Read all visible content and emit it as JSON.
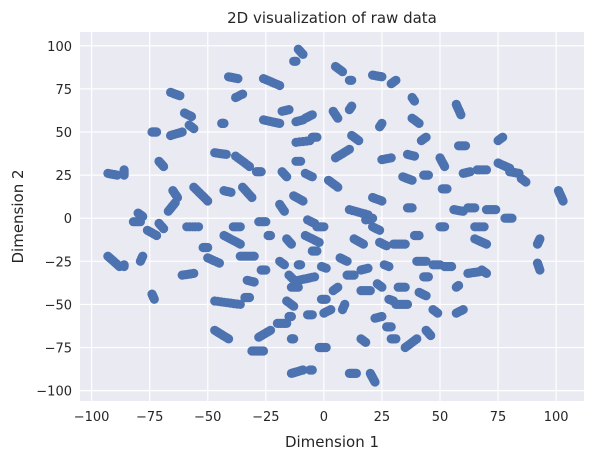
{
  "chart_data": {
    "type": "scatter",
    "title": "2D visualization of raw data",
    "xlabel": "Dimension 1",
    "ylabel": "Dimension 2",
    "xlim": [
      -105,
      112
    ],
    "ylim": [
      -106,
      108
    ],
    "xticks": [
      -100,
      -75,
      -50,
      -25,
      0,
      25,
      50,
      75,
      100
    ],
    "yticks": [
      -100,
      -75,
      -50,
      -25,
      0,
      25,
      50,
      75,
      100
    ],
    "grid": true,
    "colors": {
      "background": "#eaeaf2",
      "grid": "#ffffff",
      "marker": "#4c72b0"
    },
    "clusters": [
      [
        -93,
        26,
        -89,
        25,
        3
      ],
      [
        -86,
        28,
        -86,
        25,
        2
      ],
      [
        -93,
        -22,
        -88,
        -28,
        4
      ],
      [
        -86,
        -28,
        -86,
        -27,
        1
      ],
      [
        -78,
        -22,
        -79,
        -25,
        2
      ],
      [
        -80,
        3,
        -78,
        1,
        3
      ],
      [
        -82,
        -2,
        -79,
        -2,
        2
      ],
      [
        -76,
        -7,
        -72,
        -10,
        3
      ],
      [
        -71,
        -3,
        -69,
        -6,
        2
      ],
      [
        -74,
        -44,
        -73,
        -47,
        3
      ],
      [
        -74,
        50,
        -72,
        50,
        3
      ],
      [
        -71,
        33,
        -69,
        30,
        3
      ],
      [
        -67,
        4,
        -64,
        9,
        3
      ],
      [
        -65,
        16,
        -63,
        12,
        2
      ],
      [
        -61,
        -33,
        -56,
        -32,
        3
      ],
      [
        -66,
        48,
        -61,
        50,
        3
      ],
      [
        -66,
        73,
        -62,
        71,
        3
      ],
      [
        -60,
        61,
        -57,
        59,
        3
      ],
      [
        -58,
        54,
        -56,
        52,
        2
      ],
      [
        -56,
        18,
        -50,
        10,
        4
      ],
      [
        -59,
        -5,
        -54,
        -5,
        2
      ],
      [
        -52,
        -17,
        -50,
        -17,
        2
      ],
      [
        -47,
        38,
        -42,
        37,
        3
      ],
      [
        -50,
        -23,
        -45,
        -26,
        3
      ],
      [
        -47,
        -48,
        -36,
        -50,
        4
      ],
      [
        -47,
        -65,
        -41,
        -70,
        4
      ],
      [
        -43,
        16,
        -40,
        15,
        2
      ],
      [
        -43,
        -10,
        -36,
        -15,
        4
      ],
      [
        -44,
        55,
        -43,
        55,
        2
      ],
      [
        -41,
        82,
        -37,
        81,
        3
      ],
      [
        -39,
        -5,
        -36,
        -5,
        2
      ],
      [
        -36,
        -22,
        -30,
        -22,
        3
      ],
      [
        -34,
        -46,
        -32,
        -46,
        2
      ],
      [
        -38,
        70,
        -35,
        72,
        2
      ],
      [
        -33,
        -36,
        -30,
        -37,
        2
      ],
      [
        -31,
        -77,
        -26,
        -77,
        4
      ],
      [
        -28,
        -69,
        -23,
        -65,
        4
      ],
      [
        -38,
        36,
        -32,
        30,
        3
      ],
      [
        -35,
        18,
        -31,
        12,
        3
      ],
      [
        -29,
        27,
        -27,
        27,
        2
      ],
      [
        -28,
        -2,
        -25,
        -2,
        2
      ],
      [
        -27,
        -30,
        -25,
        -30,
        2
      ],
      [
        -24,
        -10,
        -23,
        -10,
        1
      ],
      [
        -26,
        81,
        -19,
        77,
        3
      ],
      [
        -26,
        57,
        -19,
        55,
        4
      ],
      [
        -20,
        -61,
        -16,
        -61,
        3
      ],
      [
        -18,
        62,
        -15,
        63,
        2
      ],
      [
        -19,
        8,
        -17,
        4,
        2
      ],
      [
        -18,
        27,
        -16,
        24,
        2
      ],
      [
        -16,
        -12,
        -14,
        -15,
        3
      ],
      [
        -14,
        -40,
        -11,
        -40,
        2
      ],
      [
        -19,
        -25,
        -17,
        -27,
        2
      ],
      [
        -15,
        -57,
        -14,
        -57,
        2
      ],
      [
        -14,
        -90,
        -9,
        -88,
        4
      ],
      [
        -12,
        56,
        -9,
        57,
        2
      ],
      [
        -11,
        98,
        -9,
        95,
        3
      ],
      [
        -12,
        44,
        -6,
        45,
        2
      ],
      [
        -13,
        13,
        -9,
        10,
        3
      ],
      [
        -11,
        -27,
        -10,
        -27,
        2
      ],
      [
        -15,
        -33,
        -12,
        -37,
        2
      ],
      [
        -16,
        -48,
        -13,
        -51,
        2
      ],
      [
        -11,
        -36,
        -4,
        -34,
        3
      ],
      [
        -7,
        -56,
        -5,
        -56,
        2
      ],
      [
        -14,
        -70,
        -13,
        -70,
        2
      ],
      [
        -12,
        91,
        -13,
        91,
        1
      ],
      [
        -12,
        33,
        -10,
        33,
        1
      ],
      [
        -8,
        26,
        -5,
        24,
        2
      ],
      [
        -8,
        58,
        -5,
        60,
        3
      ],
      [
        -5,
        47,
        -3,
        47,
        2
      ],
      [
        -5,
        -19,
        -3,
        -19,
        2
      ],
      [
        -7,
        -1,
        -4,
        -3,
        2
      ],
      [
        -6,
        -88,
        -5,
        -88,
        1
      ],
      [
        -8,
        -10,
        -2,
        -14,
        3
      ],
      [
        -3,
        -5,
        0,
        -5,
        2
      ],
      [
        -1,
        -28,
        1,
        -29,
        2
      ],
      [
        -2,
        -75,
        1,
        -75,
        3
      ],
      [
        -1,
        -47,
        1,
        -47,
        2
      ],
      [
        0,
        -55,
        3,
        -53,
        3
      ],
      [
        2,
        22,
        6,
        18,
        3
      ],
      [
        4,
        -42,
        6,
        -40,
        2
      ],
      [
        4,
        62,
        6,
        58,
        2
      ],
      [
        5,
        88,
        8,
        85,
        3
      ],
      [
        5,
        35,
        11,
        40,
        3
      ],
      [
        7,
        -23,
        10,
        -25,
        3
      ],
      [
        8,
        -53,
        9,
        -50,
        2
      ],
      [
        10,
        -33,
        13,
        -33,
        2
      ],
      [
        11,
        -90,
        14,
        -90,
        3
      ],
      [
        11,
        80,
        12,
        80,
        1
      ],
      [
        11,
        63,
        12,
        65,
        2
      ],
      [
        12,
        48,
        15,
        45,
        3
      ],
      [
        11,
        5,
        19,
        2,
        3
      ],
      [
        13,
        -12,
        17,
        -15,
        3
      ],
      [
        16,
        -30,
        19,
        -29,
        2
      ],
      [
        16,
        -42,
        20,
        -42,
        2
      ],
      [
        16,
        -70,
        18,
        -72,
        2
      ],
      [
        18,
        -1,
        21,
        0,
        2
      ],
      [
        20,
        -90,
        22,
        -95,
        4
      ],
      [
        21,
        83,
        25,
        82,
        3
      ],
      [
        21,
        12,
        25,
        10,
        3
      ],
      [
        21,
        -5,
        24,
        -7,
        2
      ],
      [
        22,
        -58,
        25,
        -57,
        2
      ],
      [
        23,
        -38,
        25,
        -40,
        2
      ],
      [
        24,
        -14,
        27,
        -16,
        3
      ],
      [
        24,
        53,
        25,
        55,
        2
      ],
      [
        25,
        34,
        29,
        35,
        2
      ],
      [
        26,
        -27,
        28,
        -28,
        1
      ],
      [
        28,
        -47,
        30,
        -48,
        2
      ],
      [
        27,
        -63,
        29,
        -63,
        2
      ],
      [
        29,
        -70,
        31,
        -70,
        2
      ],
      [
        29,
        78,
        31,
        80,
        2
      ],
      [
        30,
        -15,
        35,
        -15,
        3
      ],
      [
        31,
        -50,
        36,
        -50,
        3
      ],
      [
        32,
        -40,
        35,
        -40,
        2
      ],
      [
        34,
        24,
        38,
        22,
        3
      ],
      [
        35,
        -75,
        40,
        -70,
        3
      ],
      [
        36,
        37,
        39,
        36,
        2
      ],
      [
        36,
        6,
        38,
        6,
        2
      ],
      [
        38,
        58,
        41,
        55,
        3
      ],
      [
        38,
        70,
        39,
        68,
        2
      ],
      [
        39,
        -10,
        41,
        -10,
        2
      ],
      [
        40,
        -25,
        44,
        -25,
        3
      ],
      [
        41,
        -43,
        44,
        -45,
        3
      ],
      [
        42,
        45,
        44,
        47,
        2
      ],
      [
        43,
        25,
        45,
        25,
        2
      ],
      [
        43,
        -34,
        45,
        -34,
        2
      ],
      [
        44,
        -65,
        46,
        -68,
        3
      ],
      [
        47,
        -27,
        50,
        -27,
        2
      ],
      [
        47,
        -53,
        49,
        -55,
        2
      ],
      [
        50,
        -5,
        52,
        -5,
        2
      ],
      [
        50,
        35,
        52,
        30,
        3
      ],
      [
        51,
        17,
        53,
        17,
        2
      ],
      [
        52,
        -28,
        55,
        -28,
        2
      ],
      [
        56,
        5,
        60,
        4,
        3
      ],
      [
        57,
        -55,
        60,
        -53,
        2
      ],
      [
        57,
        -40,
        58,
        -39,
        2
      ],
      [
        57,
        66,
        59,
        60,
        3
      ],
      [
        58,
        42,
        61,
        42,
        2
      ],
      [
        60,
        26,
        63,
        27,
        2
      ],
      [
        62,
        -32,
        67,
        -31,
        3
      ],
      [
        62,
        6,
        65,
        6,
        2
      ],
      [
        65,
        -5,
        69,
        -5,
        2
      ],
      [
        65,
        -12,
        70,
        -15,
        3
      ],
      [
        66,
        28,
        70,
        28,
        2
      ],
      [
        68,
        -30,
        70,
        -32,
        2
      ],
      [
        70,
        5,
        74,
        5,
        2
      ],
      [
        75,
        45,
        77,
        47,
        2
      ],
      [
        75,
        32,
        80,
        29,
        3
      ],
      [
        78,
        0,
        81,
        0,
        2
      ],
      [
        80,
        27,
        84,
        26,
        3
      ],
      [
        85,
        23,
        87,
        21,
        2
      ],
      [
        92,
        -26,
        93,
        -30,
        2
      ],
      [
        92,
        -15,
        93,
        -12,
        3
      ],
      [
        101,
        16,
        103,
        10,
        4
      ]
    ]
  }
}
